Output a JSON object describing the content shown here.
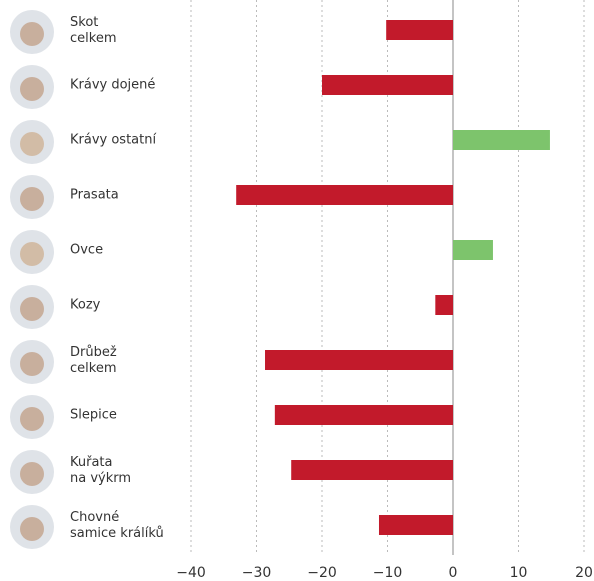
{
  "chart_data": {
    "type": "barh",
    "categories": [
      "Skot\ncelkem",
      "Krávy dojené",
      "Krávy ostatní",
      "Prasata",
      "Ovce",
      "Kozy",
      "Drůbež\ncelkem",
      "Slepice",
      "Kuřata\nna výkrm",
      "Chovné\nsamice králíků"
    ],
    "values": [
      -10.2,
      -20,
      14.8,
      -33.1,
      6.1,
      -2.7,
      -28.7,
      -27.2,
      -24.7,
      -11.3
    ],
    "colors": [
      "#c21a2b",
      "#c21a2b",
      "#7dc46c",
      "#c21a2b",
      "#7dc46c",
      "#c21a2b",
      "#c21a2b",
      "#c21a2b",
      "#c21a2b",
      "#c21a2b"
    ],
    "xlim": [
      -40,
      20
    ],
    "xticks": [
      {
        "value": -40,
        "label": "−40"
      },
      {
        "value": -30,
        "label": "−30"
      },
      {
        "value": -20,
        "label": "−20"
      },
      {
        "value": -10,
        "label": "−10"
      },
      0,
      10,
      20
    ],
    "grid": true
  }
}
